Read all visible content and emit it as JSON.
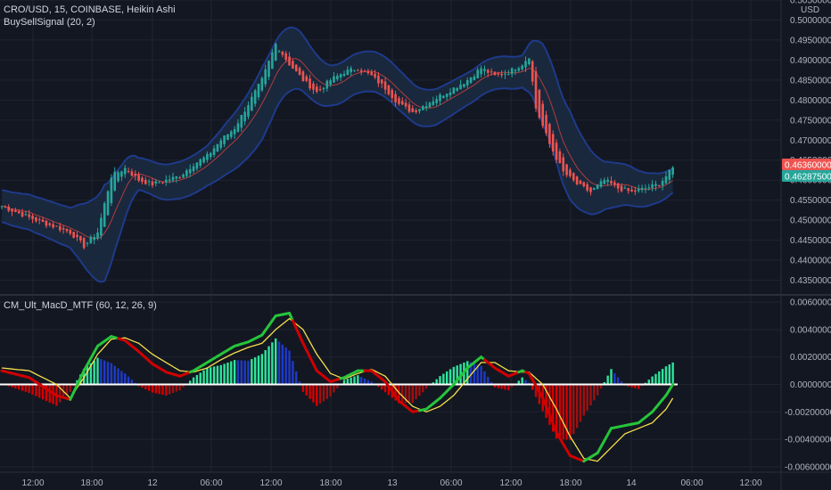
{
  "header": {
    "symbol_line": "CRO/USD, 15, COINBASE, Heikin Ashi",
    "indicator_line": "BuySellSignal (20, 2)",
    "macd_line": "CM_Ult_MacD_MTF (60, 12, 26, 9)"
  },
  "colors": {
    "background": "#131722",
    "grid": "#1f2430",
    "up_candle": "#26a69a",
    "down_candle": "#ef5350",
    "band": "#1e3a8a",
    "band_fill": "#1b2a3f",
    "basis": "#b23b3b",
    "macd_up": "#26c53a",
    "macd_down": "#d00000",
    "signal": "#f5e04a",
    "hist_up_strong": "#2ee59d",
    "hist_up_weak": "#1e3ac8",
    "hist_down_strong": "#d60000",
    "hist_down_weak": "#a01010",
    "zero_line": "#ffffff",
    "tag_red": "#ef5350",
    "tag_green": "#26a69a"
  },
  "chart_data": [
    {
      "type": "candlestick",
      "title": "CRO/USD, 15, COINBASE, Heikin Ashi",
      "ylim": [
        0.432,
        0.505
      ],
      "y_ticks": [
        "0.50500000",
        "0.50000000",
        "0.49500000",
        "0.49000000",
        "0.48500000",
        "0.48000000",
        "0.47500000",
        "0.47000000",
        "0.46500000",
        "0.46000000",
        "0.45500000",
        "0.45000000",
        "0.44500000",
        "0.44000000",
        "0.43500000"
      ],
      "y_unit": "USD",
      "x_ticks": [
        "12:00",
        "18:00",
        "12",
        "06:00",
        "12:00",
        "18:00",
        "13",
        "06:00",
        "12:00",
        "18:00",
        "14",
        "06:00",
        "12:00"
      ],
      "last_price_labels": [
        {
          "value": "0.46360000",
          "color": "red"
        },
        {
          "value": "0.46287500",
          "color": "green"
        }
      ],
      "price_keypoints": [
        [
          0,
          0.4535
        ],
        [
          10,
          0.45
        ],
        [
          20,
          0.447
        ],
        [
          24,
          0.4435
        ],
        [
          28,
          0.447
        ],
        [
          32,
          0.461
        ],
        [
          36,
          0.463
        ],
        [
          40,
          0.46
        ],
        [
          44,
          0.459
        ],
        [
          48,
          0.46
        ],
        [
          52,
          0.461
        ],
        [
          56,
          0.464
        ],
        [
          60,
          0.466
        ],
        [
          64,
          0.47
        ],
        [
          68,
          0.473
        ],
        [
          72,
          0.479
        ],
        [
          76,
          0.485
        ],
        [
          80,
          0.494
        ],
        [
          84,
          0.489
        ],
        [
          88,
          0.485
        ],
        [
          92,
          0.482
        ],
        [
          96,
          0.485
        ],
        [
          100,
          0.487
        ],
        [
          104,
          0.488
        ],
        [
          108,
          0.486
        ],
        [
          112,
          0.483
        ],
        [
          116,
          0.479
        ],
        [
          120,
          0.477
        ],
        [
          124,
          0.479
        ],
        [
          128,
          0.481
        ],
        [
          132,
          0.483
        ],
        [
          136,
          0.485
        ],
        [
          140,
          0.488
        ],
        [
          144,
          0.486
        ],
        [
          148,
          0.487
        ],
        [
          152,
          0.489
        ],
        [
          154,
          0.491
        ],
        [
          156,
          0.478
        ],
        [
          160,
          0.469
        ],
        [
          164,
          0.462
        ],
        [
          168,
          0.459
        ],
        [
          172,
          0.457
        ],
        [
          176,
          0.46
        ],
        [
          180,
          0.458
        ],
        [
          184,
          0.457
        ],
        [
          188,
          0.458
        ],
        [
          192,
          0.459
        ],
        [
          196,
          0.463
        ]
      ],
      "band_halfwidth_keypoints": [
        [
          0,
          0.004
        ],
        [
          20,
          0.005
        ],
        [
          30,
          0.012
        ],
        [
          40,
          0.004
        ],
        [
          60,
          0.005
        ],
        [
          76,
          0.009
        ],
        [
          84,
          0.008
        ],
        [
          96,
          0.005
        ],
        [
          116,
          0.005
        ],
        [
          136,
          0.004
        ],
        [
          152,
          0.004
        ],
        [
          158,
          0.01
        ],
        [
          166,
          0.011
        ],
        [
          176,
          0.006
        ],
        [
          196,
          0.003
        ]
      ],
      "series": [
        {
          "name": "BuySellSignal (20, 2)",
          "role": "bands"
        }
      ]
    },
    {
      "type": "line",
      "title": "CM_Ult_MacD_MTF (60, 12, 26, 9)",
      "ylim": [
        -0.0064,
        0.0064
      ],
      "y_ticks": [
        "0.00600000",
        "0.00400000",
        "0.00200000",
        "0.00000000",
        "-0.00200000",
        "-0.00400000",
        "-0.00600000"
      ],
      "macd_keypoints": [
        [
          0,
          0.001
        ],
        [
          8,
          0.0005
        ],
        [
          16,
          -0.0008
        ],
        [
          20,
          -0.0011
        ],
        [
          24,
          0.001
        ],
        [
          28,
          0.0028
        ],
        [
          32,
          0.0035
        ],
        [
          36,
          0.0032
        ],
        [
          40,
          0.0024
        ],
        [
          44,
          0.0015
        ],
        [
          48,
          0.0009
        ],
        [
          52,
          0.0006
        ],
        [
          56,
          0.001
        ],
        [
          60,
          0.0016
        ],
        [
          64,
          0.0022
        ],
        [
          68,
          0.0028
        ],
        [
          72,
          0.0031
        ],
        [
          76,
          0.0036
        ],
        [
          80,
          0.005
        ],
        [
          84,
          0.0052
        ],
        [
          88,
          0.003
        ],
        [
          92,
          0.001
        ],
        [
          96,
          0.0002
        ],
        [
          100,
          0.0005
        ],
        [
          104,
          0.001
        ],
        [
          108,
          0.001
        ],
        [
          112,
          0.0002
        ],
        [
          116,
          -0.0012
        ],
        [
          120,
          -0.002
        ],
        [
          124,
          -0.0018
        ],
        [
          128,
          -0.001
        ],
        [
          132,
          0.0
        ],
        [
          136,
          0.0012
        ],
        [
          140,
          0.002
        ],
        [
          144,
          0.0012
        ],
        [
          148,
          0.0006
        ],
        [
          152,
          0.001
        ],
        [
          154,
          0.0008
        ],
        [
          158,
          -0.001
        ],
        [
          162,
          -0.0035
        ],
        [
          166,
          -0.0052
        ],
        [
          170,
          -0.0056
        ],
        [
          174,
          -0.005
        ],
        [
          178,
          -0.0032
        ],
        [
          182,
          -0.003
        ],
        [
          186,
          -0.0028
        ],
        [
          190,
          -0.002
        ],
        [
          194,
          -0.0008
        ],
        [
          196,
          0.0
        ]
      ],
      "signal_keypoints": [
        [
          0,
          0.0012
        ],
        [
          8,
          0.001
        ],
        [
          16,
          0.0
        ],
        [
          20,
          -0.001
        ],
        [
          24,
          0.0005
        ],
        [
          28,
          0.0022
        ],
        [
          32,
          0.0033
        ],
        [
          36,
          0.0034
        ],
        [
          40,
          0.003
        ],
        [
          44,
          0.0022
        ],
        [
          48,
          0.0016
        ],
        [
          52,
          0.001
        ],
        [
          56,
          0.0009
        ],
        [
          60,
          0.0012
        ],
        [
          64,
          0.0018
        ],
        [
          68,
          0.0023
        ],
        [
          72,
          0.0027
        ],
        [
          76,
          0.003
        ],
        [
          80,
          0.004
        ],
        [
          84,
          0.0048
        ],
        [
          88,
          0.004
        ],
        [
          92,
          0.0022
        ],
        [
          96,
          0.0008
        ],
        [
          100,
          0.0004
        ],
        [
          104,
          0.0008
        ],
        [
          108,
          0.0011
        ],
        [
          112,
          0.0006
        ],
        [
          116,
          -0.0006
        ],
        [
          120,
          -0.0016
        ],
        [
          124,
          -0.002
        ],
        [
          128,
          -0.0016
        ],
        [
          132,
          -0.0008
        ],
        [
          136,
          0.0004
        ],
        [
          140,
          0.0016
        ],
        [
          144,
          0.0016
        ],
        [
          148,
          0.001
        ],
        [
          152,
          0.0009
        ],
        [
          154,
          0.0009
        ],
        [
          158,
          0.0
        ],
        [
          162,
          -0.0018
        ],
        [
          166,
          -0.0038
        ],
        [
          170,
          -0.0054
        ],
        [
          174,
          -0.0056
        ],
        [
          178,
          -0.0046
        ],
        [
          182,
          -0.0036
        ],
        [
          186,
          -0.0032
        ],
        [
          190,
          -0.0028
        ],
        [
          194,
          -0.0018
        ],
        [
          196,
          -0.001
        ]
      ],
      "series": [
        {
          "name": "MACD",
          "role": "macd"
        },
        {
          "name": "Signal",
          "role": "signal"
        },
        {
          "name": "Histogram",
          "role": "histogram"
        }
      ]
    }
  ]
}
